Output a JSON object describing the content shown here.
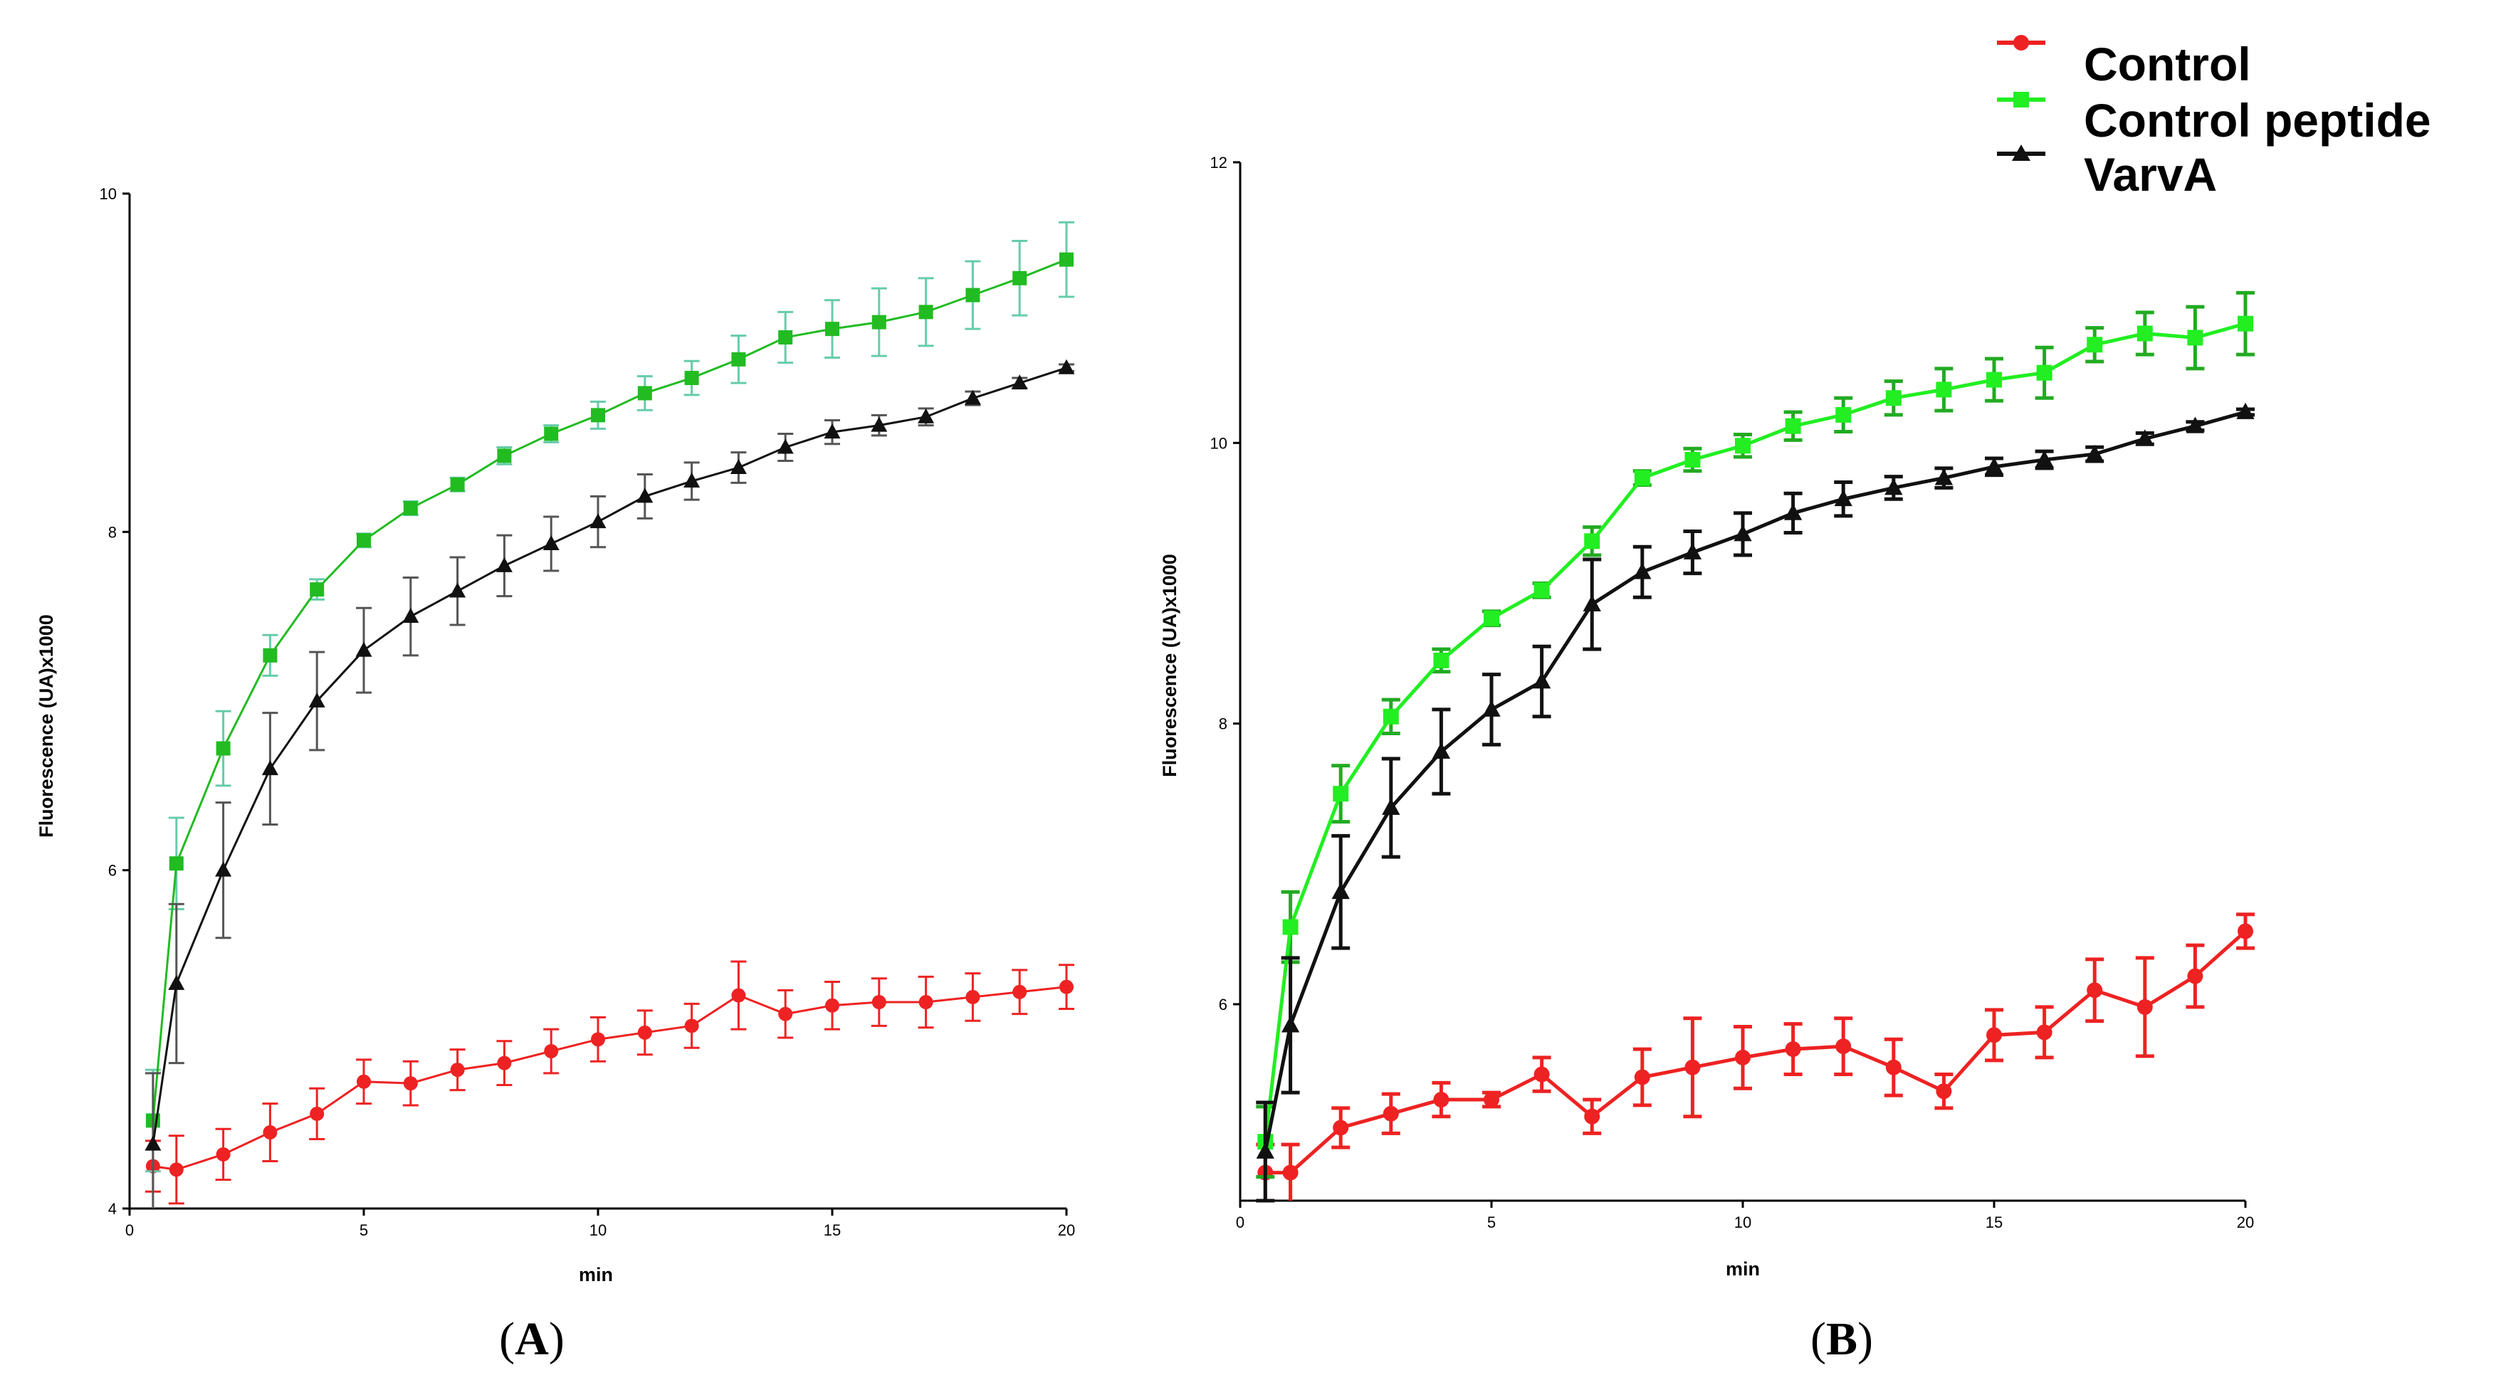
{
  "legend": [
    {
      "name": "Control",
      "color": "#ee2222",
      "marker": "circle"
    },
    {
      "name": "Control peptide",
      "color": "#22ee22",
      "marker": "square"
    },
    {
      "name": "VarvA",
      "color": "#111111",
      "marker": "triangle"
    }
  ],
  "chart_data": [
    {
      "id": "A",
      "type": "line",
      "panel_label": {
        "open": "(",
        "letter": "A",
        "close": ")"
      },
      "title": "",
      "xlabel": "min",
      "ylabel": "Fluorescence (UA)x1000",
      "xlim": [
        0,
        20
      ],
      "ylim": [
        4,
        10
      ],
      "xticks": [
        0,
        5,
        10,
        15,
        20
      ],
      "yticks": [
        4,
        6,
        8,
        10
      ],
      "grid": false,
      "x": [
        0.5,
        1,
        2,
        3,
        4,
        5,
        6,
        7,
        8,
        9,
        10,
        11,
        12,
        13,
        14,
        15,
        16,
        17,
        18,
        19,
        20
      ],
      "series": [
        {
          "name": "Control",
          "color": "#ee2222",
          "errcolor": "#ee2222",
          "marker": "circle",
          "values": [
            4.25,
            4.23,
            4.32,
            4.45,
            4.56,
            4.75,
            4.74,
            4.82,
            4.86,
            4.93,
            5.0,
            5.04,
            5.08,
            5.26,
            5.15,
            5.2,
            5.22,
            5.22,
            5.25,
            5.28,
            5.31
          ],
          "errors": [
            0.15,
            0.2,
            0.15,
            0.17,
            0.15,
            0.13,
            0.13,
            0.12,
            0.13,
            0.13,
            0.13,
            0.13,
            0.13,
            0.2,
            0.14,
            0.14,
            0.14,
            0.15,
            0.14,
            0.13,
            0.13
          ]
        },
        {
          "name": "Control peptide",
          "color": "#22bb22",
          "errcolor": "#66ccaa",
          "marker": "square",
          "values": [
            4.52,
            6.04,
            6.72,
            7.27,
            7.66,
            7.95,
            8.14,
            8.28,
            8.45,
            8.58,
            8.69,
            8.82,
            8.91,
            9.02,
            9.15,
            9.2,
            9.24,
            9.3,
            9.4,
            9.5,
            9.61
          ],
          "errors": [
            0.3,
            0.27,
            0.22,
            0.12,
            0.06,
            0.04,
            0.04,
            0.04,
            0.05,
            0.05,
            0.08,
            0.1,
            0.1,
            0.14,
            0.15,
            0.17,
            0.2,
            0.2,
            0.2,
            0.22,
            0.22
          ]
        },
        {
          "name": "VarvA",
          "color": "#111111",
          "errcolor": "#555555",
          "marker": "triangle",
          "values": [
            4.38,
            5.33,
            6.0,
            6.6,
            7.0,
            7.3,
            7.5,
            7.65,
            7.8,
            7.93,
            8.06,
            8.21,
            8.3,
            8.38,
            8.5,
            8.59,
            8.63,
            8.68,
            8.79,
            8.88,
            8.97
          ],
          "errors": [
            0.42,
            0.47,
            0.4,
            0.33,
            0.29,
            0.25,
            0.23,
            0.2,
            0.18,
            0.16,
            0.15,
            0.13,
            0.11,
            0.09,
            0.08,
            0.07,
            0.06,
            0.05,
            0.04,
            0.03,
            0.02
          ]
        }
      ]
    },
    {
      "id": "B",
      "type": "line",
      "panel_label": {
        "open": "(",
        "letter": "B",
        "close": ")"
      },
      "title": "",
      "xlabel": "min",
      "ylabel": "Fluorescence (UA)x1000",
      "xlim": [
        0,
        20
      ],
      "ylim": [
        4.6,
        12
      ],
      "xticks": [
        0,
        5,
        10,
        15,
        20
      ],
      "yticks": [
        6,
        8,
        10,
        12
      ],
      "grid": false,
      "x": [
        0.5,
        1,
        2,
        3,
        4,
        5,
        6,
        7,
        8,
        9,
        10,
        11,
        12,
        13,
        14,
        15,
        16,
        17,
        18,
        19,
        20
      ],
      "series": [
        {
          "name": "Control",
          "color": "#ee2222",
          "errcolor": "#ee2222",
          "marker": "circle",
          "values": [
            4.8,
            4.8,
            5.12,
            5.22,
            5.32,
            5.32,
            5.5,
            5.2,
            5.48,
            5.55,
            5.62,
            5.68,
            5.7,
            5.55,
            5.38,
            5.78,
            5.8,
            6.1,
            5.98,
            6.2,
            6.52
          ],
          "errors": [
            0.2,
            0.2,
            0.14,
            0.14,
            0.12,
            0.05,
            0.12,
            0.12,
            0.2,
            0.35,
            0.22,
            0.18,
            0.2,
            0.2,
            0.12,
            0.18,
            0.18,
            0.22,
            0.35,
            0.22,
            0.12
          ]
        },
        {
          "name": "Control peptide",
          "color": "#22ee22",
          "errcolor": "#22aa22",
          "marker": "square",
          "values": [
            5.02,
            6.55,
            7.5,
            8.05,
            8.45,
            8.75,
            8.95,
            9.3,
            9.75,
            9.88,
            9.98,
            10.12,
            10.2,
            10.32,
            10.38,
            10.45,
            10.5,
            10.7,
            10.78,
            10.75,
            10.85
          ],
          "errors": [
            0.25,
            0.25,
            0.2,
            0.12,
            0.08,
            0.05,
            0.05,
            0.1,
            0.05,
            0.08,
            0.08,
            0.1,
            0.12,
            0.12,
            0.15,
            0.15,
            0.18,
            0.12,
            0.15,
            0.22,
            0.22
          ]
        },
        {
          "name": "VarvA",
          "color": "#111111",
          "errcolor": "#111111",
          "marker": "triangle",
          "values": [
            4.95,
            5.85,
            6.8,
            7.4,
            7.8,
            8.1,
            8.3,
            8.85,
            9.08,
            9.22,
            9.35,
            9.5,
            9.6,
            9.68,
            9.75,
            9.83,
            9.88,
            9.92,
            10.03,
            10.12,
            10.22
          ],
          "errors": [
            0.35,
            0.48,
            0.4,
            0.35,
            0.3,
            0.25,
            0.25,
            0.32,
            0.18,
            0.15,
            0.15,
            0.14,
            0.12,
            0.08,
            0.07,
            0.06,
            0.06,
            0.05,
            0.04,
            0.03,
            0.02
          ]
        }
      ]
    }
  ]
}
